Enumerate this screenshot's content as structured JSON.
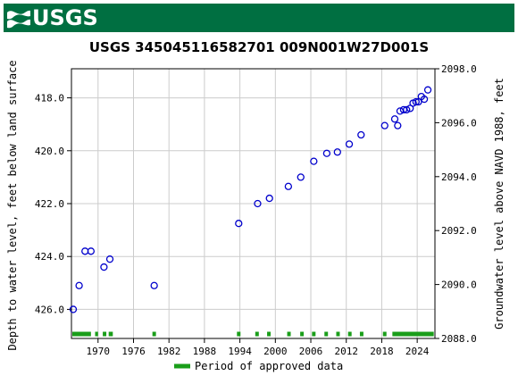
{
  "header": {
    "logo_text": "USGS",
    "logo_icon": "usgs-wave-logo-icon",
    "banner_color": "#006f41"
  },
  "chart_data": {
    "type": "scatter",
    "title": "USGS 345045116582701 009N001W27D001S",
    "ylabel_left": "Depth to water level, feet below land surface",
    "ylabel_right": "Groundwater level above NAVD 1988, feet",
    "left_axis": {
      "reversed": true,
      "ylim": [
        427.1,
        416.9
      ],
      "ticks": [
        "418.0",
        "420.0",
        "422.0",
        "424.0",
        "426.0"
      ]
    },
    "right_axis": {
      "ylim": [
        2088.0,
        2098.0
      ],
      "ticks": [
        "2088.0",
        "2090.0",
        "2092.0",
        "2094.0",
        "2096.0",
        "2098.0"
      ]
    },
    "x_axis": {
      "xlim": [
        1965.5,
        2027.0
      ],
      "ticks": [
        "1970",
        "1976",
        "1982",
        "1988",
        "1994",
        "2000",
        "2006",
        "2012",
        "2018",
        "2024"
      ]
    },
    "grid": true,
    "marker_color": "#0000cc",
    "approved_color": "#1a9e1a",
    "series": [
      {
        "x": [
          1965.8,
          1966.8,
          1967.8,
          1968.8,
          1971.0,
          1972.0,
          1979.5,
          1993.8,
          1997.0,
          1999.0,
          2002.2,
          2004.3,
          2006.5,
          2008.7,
          2010.5,
          2012.5,
          2014.5,
          2018.5,
          2020.2,
          2020.7,
          2021.1,
          2021.7,
          2022.2,
          2022.8,
          2023.3,
          2023.8,
          2024.2,
          2024.7,
          2025.2,
          2025.8
        ],
        "y": [
          426.0,
          425.1,
          423.8,
          423.8,
          424.4,
          424.1,
          425.1,
          422.75,
          422.0,
          421.8,
          421.35,
          421.0,
          420.4,
          420.1,
          420.05,
          419.75,
          419.4,
          419.05,
          418.8,
          419.05,
          418.5,
          418.45,
          418.45,
          418.4,
          418.2,
          418.15,
          418.15,
          417.95,
          418.05,
          417.7
        ]
      }
    ],
    "approved_periods": [
      [
        1965.5,
        1968.8
      ],
      [
        1969.5,
        1970.0
      ],
      [
        1970.8,
        1971.4
      ],
      [
        1971.8,
        1972.5
      ],
      [
        1979.2,
        1979.8
      ],
      [
        1993.5,
        1994.1
      ],
      [
        1996.6,
        1997.2
      ],
      [
        1998.6,
        1999.2
      ],
      [
        2002.0,
        2002.6
      ],
      [
        2004.2,
        2004.8
      ],
      [
        2006.2,
        2006.8
      ],
      [
        2008.3,
        2008.9
      ],
      [
        2010.3,
        2010.9
      ],
      [
        2012.3,
        2012.9
      ],
      [
        2014.3,
        2014.9
      ],
      [
        2018.2,
        2018.8
      ],
      [
        2019.8,
        2026.8
      ]
    ],
    "legend": {
      "label": "Period of approved data",
      "placement": "bottom-center"
    }
  }
}
